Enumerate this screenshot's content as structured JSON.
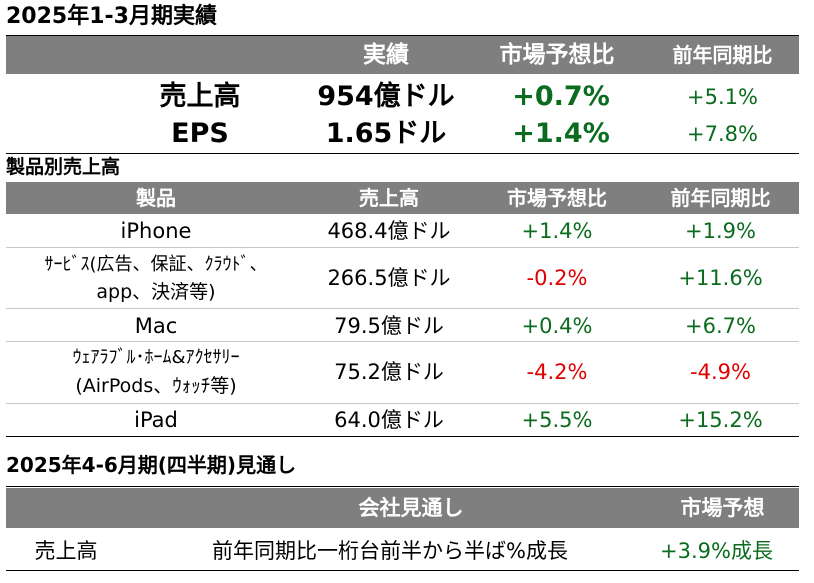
{
  "summary": {
    "title": "2025年1-3月期実績",
    "headers": [
      "実績",
      "市場予想比",
      "前年同期比"
    ],
    "rows": [
      {
        "label": "売上高",
        "actual": "954億ドル",
        "vs_forecast": "+0.7%",
        "yoy": "+5.1%"
      },
      {
        "label": "EPS",
        "actual": "1.65ドル",
        "vs_forecast": "+1.4%",
        "yoy": "+7.8%"
      }
    ]
  },
  "products": {
    "title": "製品別売上高",
    "headers": [
      "製品",
      "売上高",
      "市場予想比",
      "前年同期比"
    ],
    "rows": [
      {
        "name_line1": "iPhone",
        "name_line2": "",
        "sales": "468.4億ドル",
        "vs_forecast": "+1.4%",
        "yoy": "+1.9%"
      },
      {
        "name_line1": "ｻｰﾋﾞｽ(広告、保証、ｸﾗｳﾄﾞ、",
        "name_line2": "app、決済等)",
        "sales": "266.5億ドル",
        "vs_forecast": "-0.2%",
        "yoy": "+11.6%"
      },
      {
        "name_line1": "Mac",
        "name_line2": "",
        "sales": "79.5億ドル",
        "vs_forecast": "+0.4%",
        "yoy": "+6.7%"
      },
      {
        "name_line1": "ｳｪｱﾗﾌﾞﾙ･ﾎｰﾑ&ｱｸｾｻﾘｰ",
        "name_line2": "(AirPods、ｳｫｯﾁ等)",
        "sales": "75.2億ドル",
        "vs_forecast": "-4.2%",
        "yoy": "-4.9%"
      },
      {
        "name_line1": "iPad",
        "name_line2": "",
        "sales": "64.0億ドル",
        "vs_forecast": "+5.5%",
        "yoy": "+15.2%"
      }
    ]
  },
  "outlook": {
    "title": "2025年4-6月期(四半期)見通し",
    "headers": [
      "会社見通し",
      "市場予想"
    ],
    "row": {
      "label": "売上高",
      "company": "前年同期比一桁台前半から半ば%成長",
      "market": "+3.9%成長"
    }
  },
  "colors": {
    "header_bg": "#7f7f7f",
    "positive": "#0b6b1e",
    "negative": "#e00000"
  }
}
